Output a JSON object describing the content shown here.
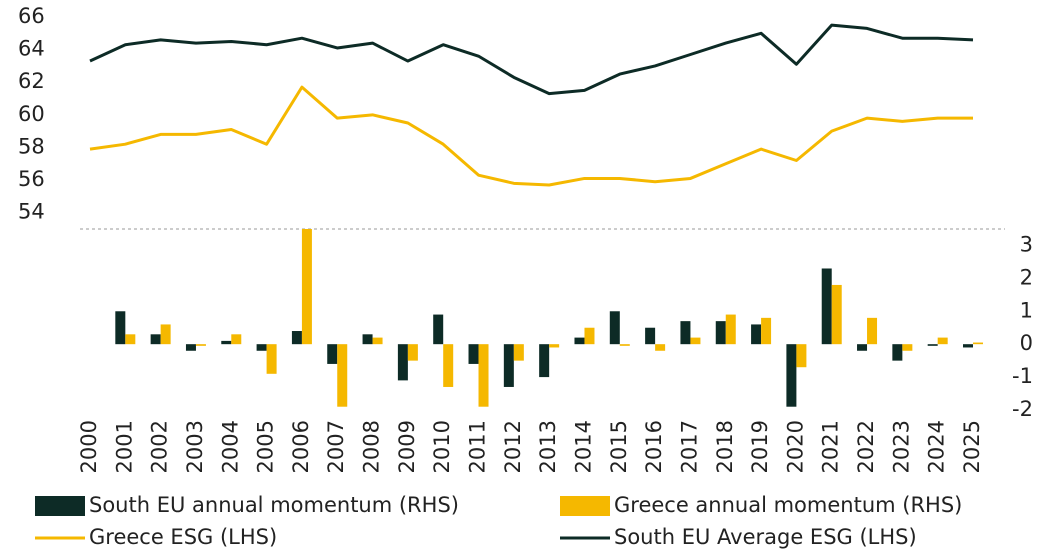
{
  "chart_data": {
    "type": "bar_line",
    "categories": [
      "2000",
      "2001",
      "2002",
      "2003",
      "2004",
      "2005",
      "2006",
      "2007",
      "2008",
      "2009",
      "2010",
      "2011",
      "2012",
      "2013",
      "2014",
      "2015",
      "2016",
      "2017",
      "2018",
      "2019",
      "2020",
      "2021",
      "2022",
      "2023",
      "2024",
      "2025"
    ],
    "series": [
      {
        "name": "South EU annual momentum (RHS)",
        "kind": "bar",
        "axis": "y2",
        "color": "#0d2b26",
        "values": [
          null,
          1.0,
          0.3,
          -0.2,
          0.1,
          -0.2,
          0.4,
          -0.6,
          0.3,
          -1.1,
          0.9,
          -0.6,
          -1.3,
          -1.0,
          0.2,
          1.0,
          0.5,
          0.7,
          0.7,
          0.6,
          -1.9,
          2.3,
          -0.2,
          -0.5,
          -0.05,
          -0.1
        ]
      },
      {
        "name": "Greece annual momentum (RHS)",
        "kind": "bar",
        "axis": "y2",
        "color": "#f5b800",
        "values": [
          null,
          0.3,
          0.6,
          -0.05,
          0.3,
          -0.9,
          3.5,
          -1.9,
          0.2,
          -0.5,
          -1.3,
          -1.9,
          -0.5,
          -0.1,
          0.5,
          -0.05,
          -0.2,
          0.2,
          0.9,
          0.8,
          -0.7,
          1.8,
          0.8,
          -0.2,
          0.2,
          0.05
        ]
      },
      {
        "name": "Greece ESG (LHS)",
        "kind": "line",
        "color": "#f5b800",
        "values": [
          57.9,
          58.2,
          58.8,
          58.8,
          59.1,
          58.2,
          61.7,
          59.8,
          60.0,
          59.5,
          58.2,
          56.3,
          55.8,
          55.7,
          56.1,
          56.1,
          55.9,
          56.1,
          57.0,
          57.9,
          57.2,
          59.0,
          59.8,
          59.6,
          59.8,
          59.8
        ]
      },
      {
        "name": "South EU Average ESG (LHS)",
        "kind": "line",
        "color": "#0d2b26",
        "values": [
          63.3,
          64.3,
          64.6,
          64.4,
          64.5,
          64.3,
          64.7,
          64.1,
          64.4,
          63.3,
          64.3,
          63.6,
          62.3,
          61.3,
          61.5,
          62.5,
          63.0,
          63.7,
          64.4,
          65.0,
          63.1,
          65.5,
          65.3,
          64.7,
          64.7,
          64.6
        ]
      }
    ],
    "ylim": [
      53,
      66
    ],
    "yticks": [
      54,
      56,
      58,
      60,
      62,
      64,
      66
    ],
    "y2lim": [
      -2,
      3.5
    ],
    "y2ticks": [
      -2,
      -1,
      0,
      1,
      2,
      3
    ]
  }
}
